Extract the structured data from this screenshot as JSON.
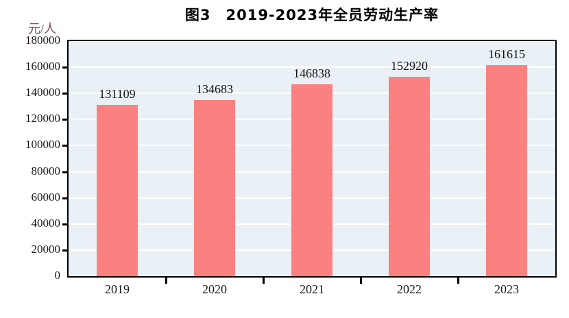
{
  "page": {
    "background": "#ffffff"
  },
  "chart_data": {
    "type": "bar",
    "title": "图3　2019-2023年全员劳动生产率",
    "ylabel": "元/人",
    "xlabel": "",
    "categories": [
      "2019",
      "2020",
      "2021",
      "2022",
      "2023"
    ],
    "values": [
      131109,
      134683,
      146838,
      152920,
      161615
    ],
    "data_labels": [
      "131109",
      "134683",
      "146838",
      "152920",
      "161615"
    ],
    "ylim": [
      0,
      180000
    ],
    "ytick_step": 20000,
    "ytick_labels": [
      "0",
      "20000",
      "40000",
      "60000",
      "80000",
      "100000",
      "120000",
      "140000",
      "160000",
      "180000"
    ],
    "grid": true,
    "gridline_color": "#ffffff",
    "legend": "none",
    "bar_color": "#fb8181",
    "plot_background": "#eaf1f6",
    "frame_color": "#000000",
    "title_color": "#000000",
    "tick_label_color": "#1a1a1a",
    "unit_label_color": "#7d4545"
  }
}
